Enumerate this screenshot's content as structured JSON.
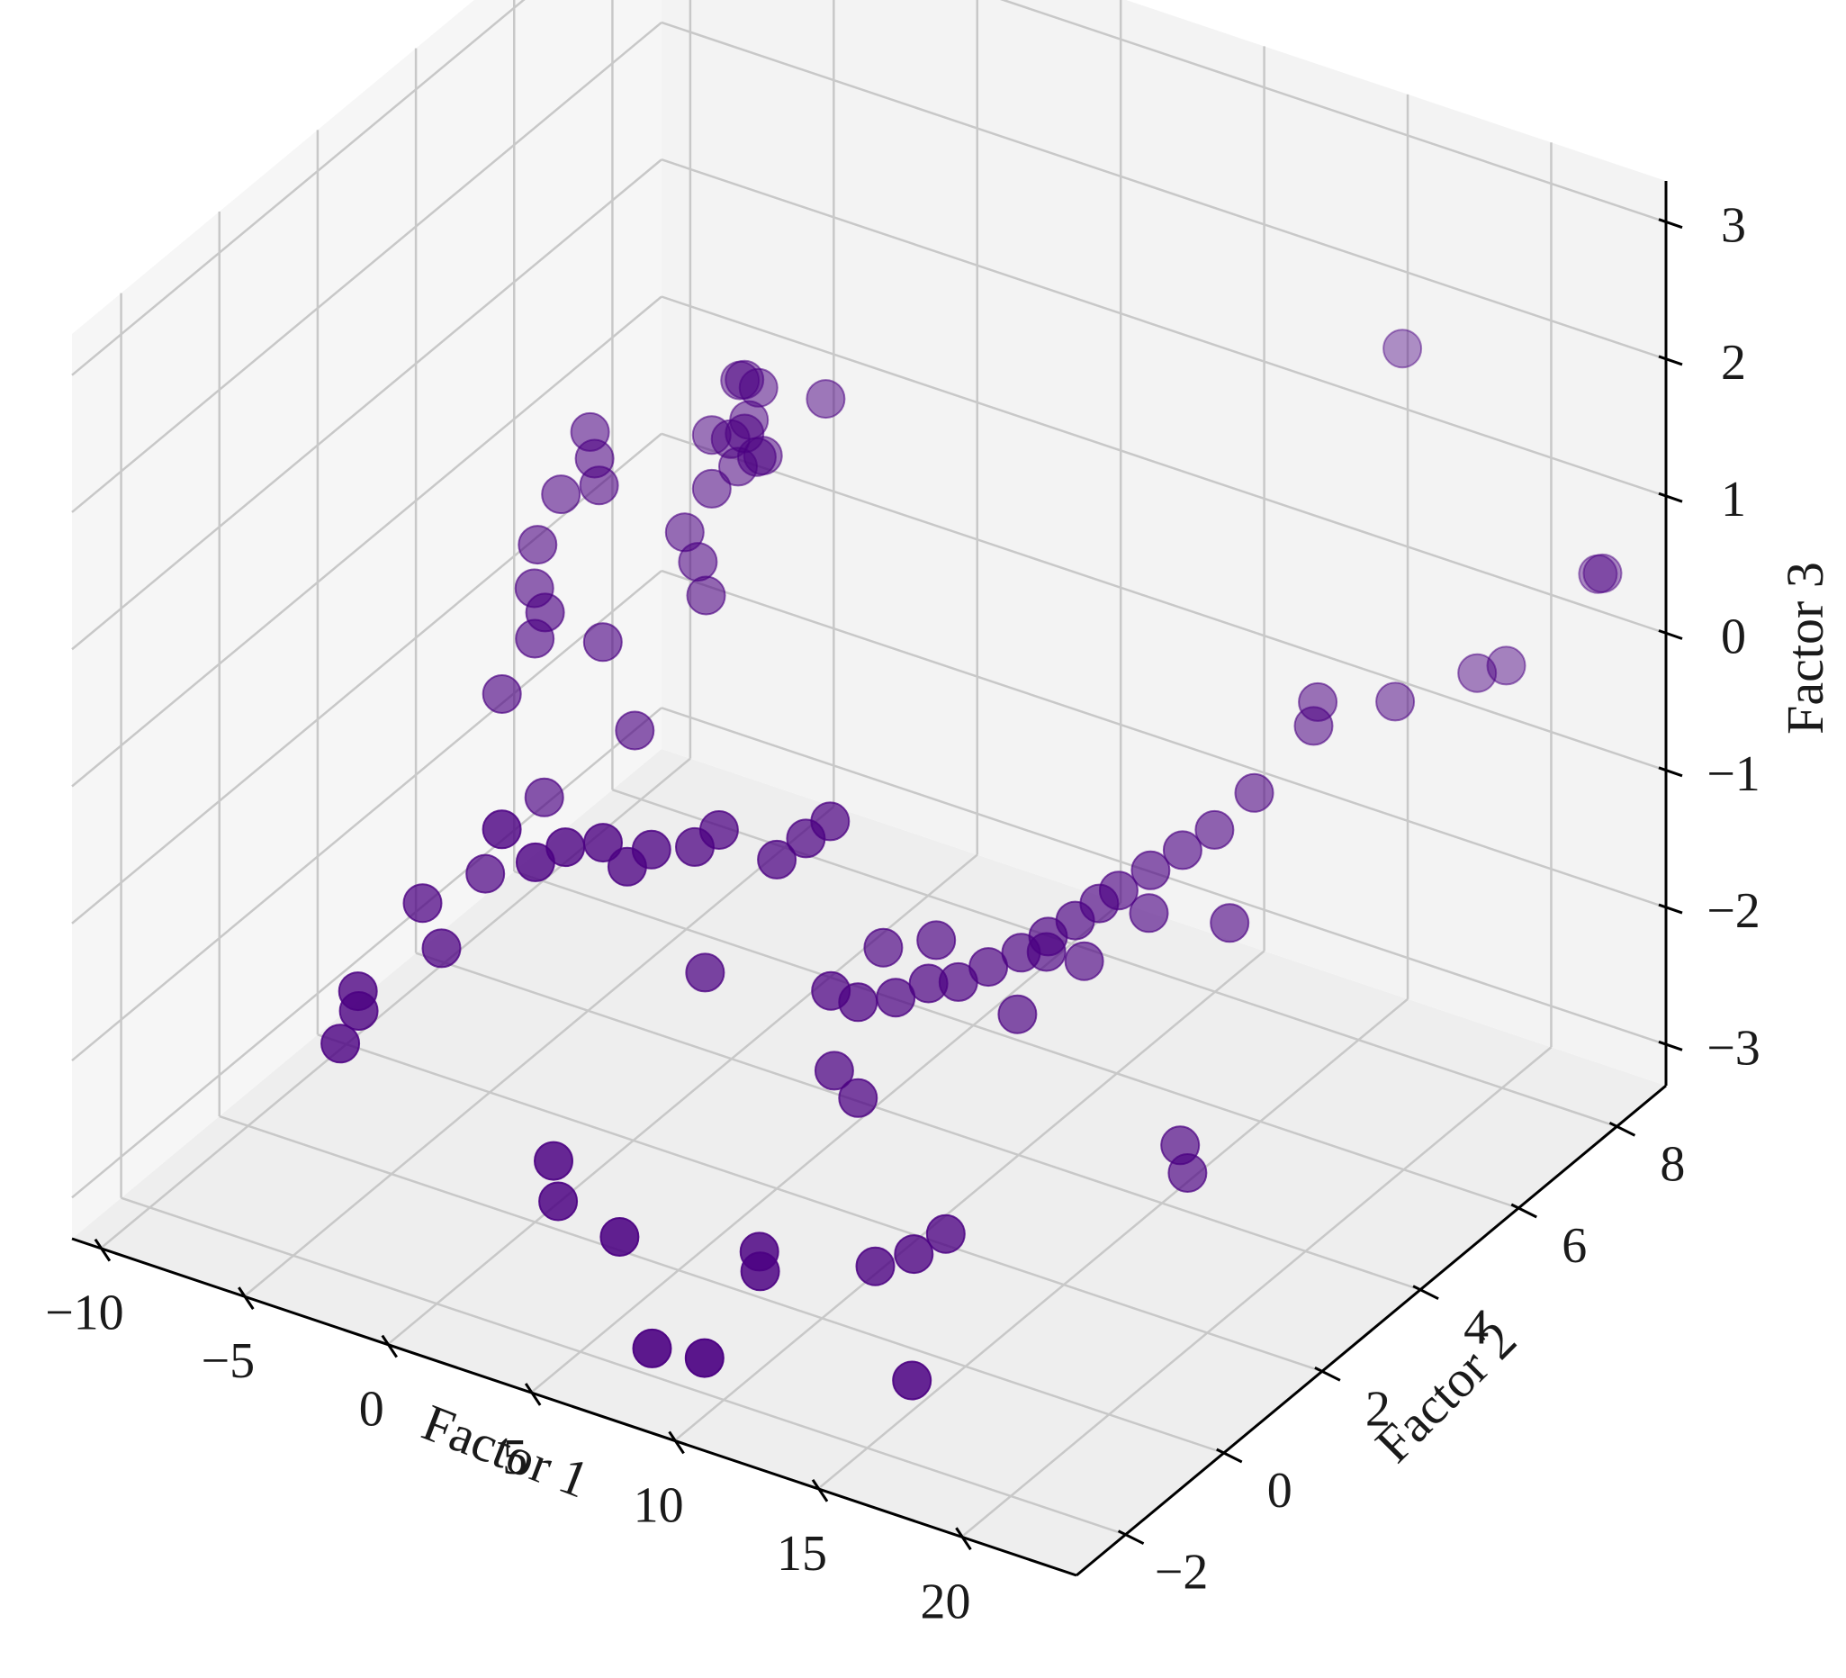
{
  "chart_data": {
    "type": "scatter3d",
    "title": "",
    "xlabel": "Factor 1",
    "ylabel": "Factor 2",
    "zlabel": "Factor 3",
    "xlim": [
      -11,
      24
    ],
    "ylim": [
      -3,
      9
    ],
    "zlim": [
      -3.3,
      3.3
    ],
    "x_ticks": [
      -10,
      -5,
      0,
      5,
      10,
      15,
      20
    ],
    "y_ticks": [
      -2,
      0,
      2,
      4,
      6,
      8
    ],
    "z_ticks": [
      -3,
      -2,
      -1,
      0,
      1,
      2,
      3
    ],
    "x_tick_labels": [
      "−10",
      "−5",
      "0",
      "5",
      "10",
      "15",
      "20"
    ],
    "y_tick_labels": [
      "−2",
      "0",
      "2",
      "4",
      "6",
      "8"
    ],
    "z_tick_labels": [
      "−3",
      "−2",
      "−1",
      "0",
      "1",
      "2",
      "3"
    ],
    "grid": true,
    "marker_color": "#4b0082",
    "pane_color": "#f2f2f2",
    "points": [
      [
        15.5,
        8.6,
        1.6
      ],
      [
        23,
        8.2,
        0.6
      ],
      [
        23.5,
        8.0,
        0.7
      ],
      [
        21,
        7.5,
        0.0
      ],
      [
        20.5,
        7.2,
        0.0
      ],
      [
        18.5,
        6.7,
        -0.2
      ],
      [
        17,
        6.0,
        -0.1
      ],
      [
        17.2,
        5.8,
        -0.2
      ],
      [
        16.5,
        5.0,
        -0.5
      ],
      [
        15.8,
        4.6,
        -0.7
      ],
      [
        15.2,
        4.3,
        -0.8
      ],
      [
        14.6,
        4.0,
        -0.9
      ],
      [
        14.0,
        3.7,
        -1.0
      ],
      [
        13.5,
        3.6,
        -1.1
      ],
      [
        13.0,
        3.4,
        -1.2
      ],
      [
        12.4,
        3.2,
        -1.3
      ],
      [
        11.8,
        3.0,
        -1.4
      ],
      [
        11.0,
        2.8,
        -1.5
      ],
      [
        10.3,
        2.6,
        -1.6
      ],
      [
        9.6,
        2.4,
        -1.6
      ],
      [
        8.8,
        2.2,
        -1.7
      ],
      [
        8.0,
        1.9,
        -1.7
      ],
      [
        7.4,
        1.7,
        -1.6
      ],
      [
        12.0,
        3.4,
        -1.5
      ],
      [
        12.8,
        3.7,
        -1.6
      ],
      [
        14.2,
        4.2,
        -1.3
      ],
      [
        16.5,
        4.5,
        -1.3
      ],
      [
        11.5,
        3.1,
        -1.9
      ],
      [
        6.0,
        2.5,
        -0.7
      ],
      [
        5.5,
        2.3,
        -0.8
      ],
      [
        5.0,
        2.0,
        -0.9
      ],
      [
        3.5,
        1.7,
        -0.7
      ],
      [
        3.0,
        1.5,
        -0.8
      ],
      [
        2.0,
        1.2,
        -0.8
      ],
      [
        1.5,
        1.0,
        -0.9
      ],
      [
        1.0,
        0.8,
        -0.7
      ],
      [
        0.2,
        0.5,
        -0.7
      ],
      [
        -0.5,
        0.3,
        -0.8
      ],
      [
        -1.5,
        0.2,
        -0.6
      ],
      [
        -4.5,
        6.8,
        0.5
      ],
      [
        -4.0,
        6.6,
        0.6
      ],
      [
        -3.5,
        6.4,
        0.4
      ],
      [
        -3.0,
        6.3,
        0.7
      ],
      [
        -3.8,
        6.2,
        0.3
      ],
      [
        -3.2,
        6.0,
        0.2
      ],
      [
        -2.8,
        5.9,
        0.5
      ],
      [
        -2.5,
        6.1,
        0.3
      ],
      [
        -4.8,
        6.4,
        0.2
      ],
      [
        -3.6,
        5.7,
        0.1
      ],
      [
        -2.2,
        5.8,
        0.4
      ],
      [
        -1.0,
        6.5,
        0.7
      ],
      [
        -4.2,
        5.5,
        -0.2
      ],
      [
        -3.4,
        5.3,
        -0.3
      ],
      [
        -2.6,
        5.0,
        -0.4
      ],
      [
        -7.5,
        5.5,
        0.3
      ],
      [
        -7.0,
        5.3,
        0.2
      ],
      [
        -6.5,
        5.1,
        0.1
      ],
      [
        -8.0,
        5.2,
        -0.1
      ],
      [
        -8.3,
        4.9,
        -0.4
      ],
      [
        -7.9,
        4.6,
        -0.6
      ],
      [
        -7.2,
        4.2,
        -0.8
      ],
      [
        -6.5,
        4.0,
        -0.5
      ],
      [
        -5.0,
        4.3,
        -0.7
      ],
      [
        -3.2,
        3.9,
        -1.1
      ],
      [
        -8.0,
        4.0,
        -1.2
      ],
      [
        -5.5,
        3.4,
        -1.6
      ],
      [
        -5.5,
        2.2,
        -1.8
      ],
      [
        -7.0,
        1.8,
        -2.0
      ],
      [
        -6.0,
        1.6,
        -2.2
      ],
      [
        -7.2,
        0.6,
        -2.3
      ],
      [
        -7.0,
        0.5,
        -2.4
      ],
      [
        -7.3,
        0.3,
        -2.6
      ],
      [
        2.5,
        2.0,
        -1.9
      ],
      [
        7.0,
        3.0,
        -1.7
      ],
      [
        8.5,
        3.2,
        -1.6
      ],
      [
        7.0,
        2.0,
        -2.3
      ],
      [
        8.0,
        1.9,
        -2.4
      ],
      [
        1.5,
        -0.5,
        -2.6
      ],
      [
        2.0,
        -0.7,
        -2.8
      ],
      [
        5.0,
        -1.2,
        -2.7
      ],
      [
        8.5,
        -0.4,
        -2.8
      ],
      [
        8.7,
        -0.5,
        -2.9
      ],
      [
        11.0,
        0.5,
        -3.0
      ],
      [
        12.0,
        0.7,
        -2.9
      ],
      [
        12.6,
        1.0,
        -2.8
      ],
      [
        7.5,
        -2.0,
        -3.1
      ],
      [
        9.5,
        -2.1,
        -3.0
      ],
      [
        14.5,
        -0.8,
        -3.2
      ],
      [
        17.0,
        3.2,
        -2.5
      ],
      [
        17.6,
        3.0,
        -2.6
      ]
    ]
  }
}
